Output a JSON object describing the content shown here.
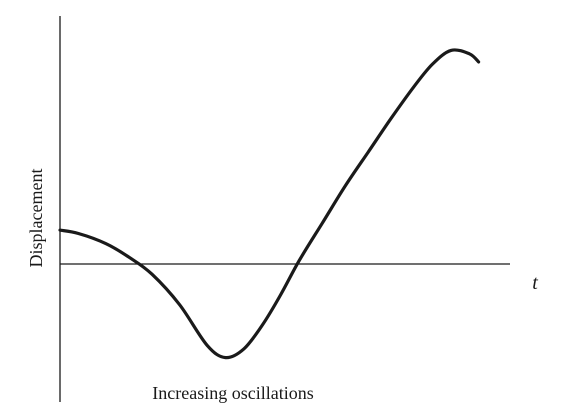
{
  "chart_data": {
    "type": "line",
    "ylabel": "Displacement",
    "xlabel": "t",
    "caption": "Increasing oscillations",
    "grid": false,
    "ticks": false,
    "xlim": [
      0,
      10
    ],
    "ylim": [
      -2,
      3
    ],
    "series": [
      {
        "x": [
          0,
          0.4,
          1.0,
          1.5,
          2.0,
          2.6,
          3.2,
          3.6,
          4.0,
          4.4,
          4.8,
          5.2,
          5.7,
          6.2,
          6.7,
          7.2,
          7.7,
          8.1,
          8.5,
          8.9,
          9.1
        ],
        "y": [
          0.5,
          0.45,
          0.3,
          0.1,
          -0.15,
          -0.6,
          -1.2,
          -1.38,
          -1.25,
          -0.9,
          -0.45,
          0.05,
          0.6,
          1.15,
          1.65,
          2.15,
          2.62,
          2.95,
          3.15,
          3.1,
          2.98
        ]
      }
    ]
  }
}
